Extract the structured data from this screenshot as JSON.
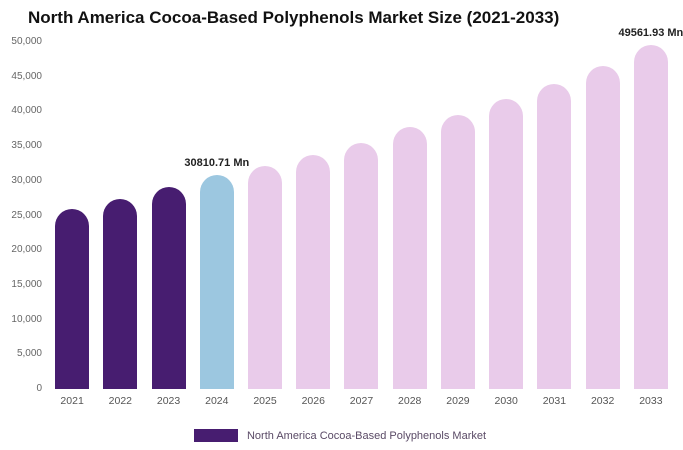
{
  "chart_data": {
    "type": "bar",
    "title": "North America Cocoa-Based Polyphenols Market Size (2021-2033)",
    "categories": [
      "2021",
      "2022",
      "2023",
      "2024",
      "2025",
      "2026",
      "2027",
      "2028",
      "2029",
      "2030",
      "2031",
      "2032",
      "2033"
    ],
    "values": [
      25900,
      27350,
      29050,
      30810.71,
      32150,
      33750,
      35450,
      37700,
      39500,
      41800,
      44000,
      46500,
      49561.93
    ],
    "bar_colors": [
      "#471D70",
      "#471D70",
      "#471D70",
      "#9CC7E0",
      "#E9CBEA",
      "#E9CBEA",
      "#E9CBEA",
      "#E9CBEA",
      "#E9CBEA",
      "#E9CBEA",
      "#E9CBEA",
      "#E9CBEA",
      "#E9CBEA"
    ],
    "ylim": [
      0,
      50000
    ],
    "yticks": [
      {
        "value": 0,
        "label": "0"
      },
      {
        "value": 5000,
        "label": "5,000"
      },
      {
        "value": 10000,
        "label": "10,000"
      },
      {
        "value": 15000,
        "label": "15,000"
      },
      {
        "value": 20000,
        "label": "20,000"
      },
      {
        "value": 25000,
        "label": "25,000"
      },
      {
        "value": 30000,
        "label": "30,000"
      },
      {
        "value": 35000,
        "label": "35,000"
      },
      {
        "value": 40000,
        "label": "40,000"
      },
      {
        "value": 45000,
        "label": "45,000"
      },
      {
        "value": 50000,
        "label": "50,000"
      }
    ],
    "grid": false,
    "annotations": [
      {
        "index": 3,
        "text": "30810.71 Mn"
      },
      {
        "index": 12,
        "text": "49561.93 Mn"
      }
    ],
    "legend": [
      {
        "label": "North America Cocoa-Based Polyphenols Market",
        "color": "#471D70"
      }
    ],
    "legend_position": "bottom"
  }
}
